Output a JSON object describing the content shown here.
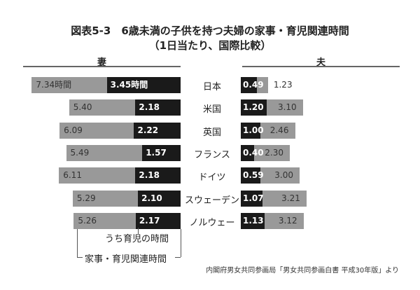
{
  "title": {
    "line1": "図表5-3　6歳未満の子供を持つ夫婦の家事・育児関連時間",
    "line2": "（1日当たり、国際比較）"
  },
  "sides": {
    "wife": "妻",
    "husband": "夫"
  },
  "legend": {
    "childcare": "うち育児の時間",
    "total": "家事・育児関連時間"
  },
  "source": "内閣府男女共同参画局「男女共同参画白書 平成30年版」より",
  "colors": {
    "total": "#999999",
    "childcare": "#1a1a1a"
  },
  "rows": [
    {
      "country": "日本",
      "wife_total_label": "7.34時間",
      "wife_child_label": "3.45時間",
      "husband_child_label": "0.49",
      "husband_total_label": "1.23"
    },
    {
      "country": "米国",
      "wife_total_label": "5.40",
      "wife_child_label": "2.18",
      "husband_child_label": "1.20",
      "husband_total_label": "3.10"
    },
    {
      "country": "英国",
      "wife_total_label": "6.09",
      "wife_child_label": "2.22",
      "husband_child_label": "1.00",
      "husband_total_label": "2.46"
    },
    {
      "country": "フランス",
      "wife_total_label": "5.49",
      "wife_child_label": "1.57",
      "husband_child_label": "0.40",
      "husband_total_label": "2.30"
    },
    {
      "country": "ドイツ",
      "wife_total_label": "6.11",
      "wife_child_label": "2.18",
      "husband_child_label": "0.59",
      "husband_total_label": "3.00"
    },
    {
      "country": "スウェーデン",
      "wife_total_label": "5.29",
      "wife_child_label": "2.10",
      "husband_child_label": "1.07",
      "husband_total_label": "3.21"
    },
    {
      "country": "ノルウェー",
      "wife_total_label": "5.26",
      "wife_child_label": "2.17",
      "husband_child_label": "1.13",
      "husband_total_label": "3.12"
    }
  ],
  "chart_data": {
    "type": "bar",
    "title": "図表5-3 6歳未満の子供を持つ夫婦の家事・育児関連時間（1日当たり、国際比較）",
    "orientation": "horizontal-butterfly",
    "units": "時間:分 (hours.minutes)",
    "categories": [
      "日本",
      "米国",
      "英国",
      "フランス",
      "ドイツ",
      "スウェーデン",
      "ノルウェー"
    ],
    "series": [
      {
        "name": "妻 家事・育児関連時間",
        "values": [
          7.34,
          5.4,
          6.09,
          5.49,
          6.11,
          5.29,
          5.26
        ]
      },
      {
        "name": "妻 うち育児の時間",
        "values": [
          3.45,
          2.18,
          2.22,
          1.57,
          2.18,
          2.1,
          2.17
        ]
      },
      {
        "name": "夫 家事・育児関連時間",
        "values": [
          1.23,
          3.1,
          2.46,
          2.3,
          3.0,
          3.21,
          3.12
        ]
      },
      {
        "name": "夫 うち育児の時間",
        "values": [
          0.49,
          1.2,
          1.0,
          0.4,
          0.59,
          1.07,
          1.13
        ]
      }
    ],
    "legend": [
      "うち育児の時間",
      "家事・育児関連時間"
    ],
    "grid": false
  }
}
